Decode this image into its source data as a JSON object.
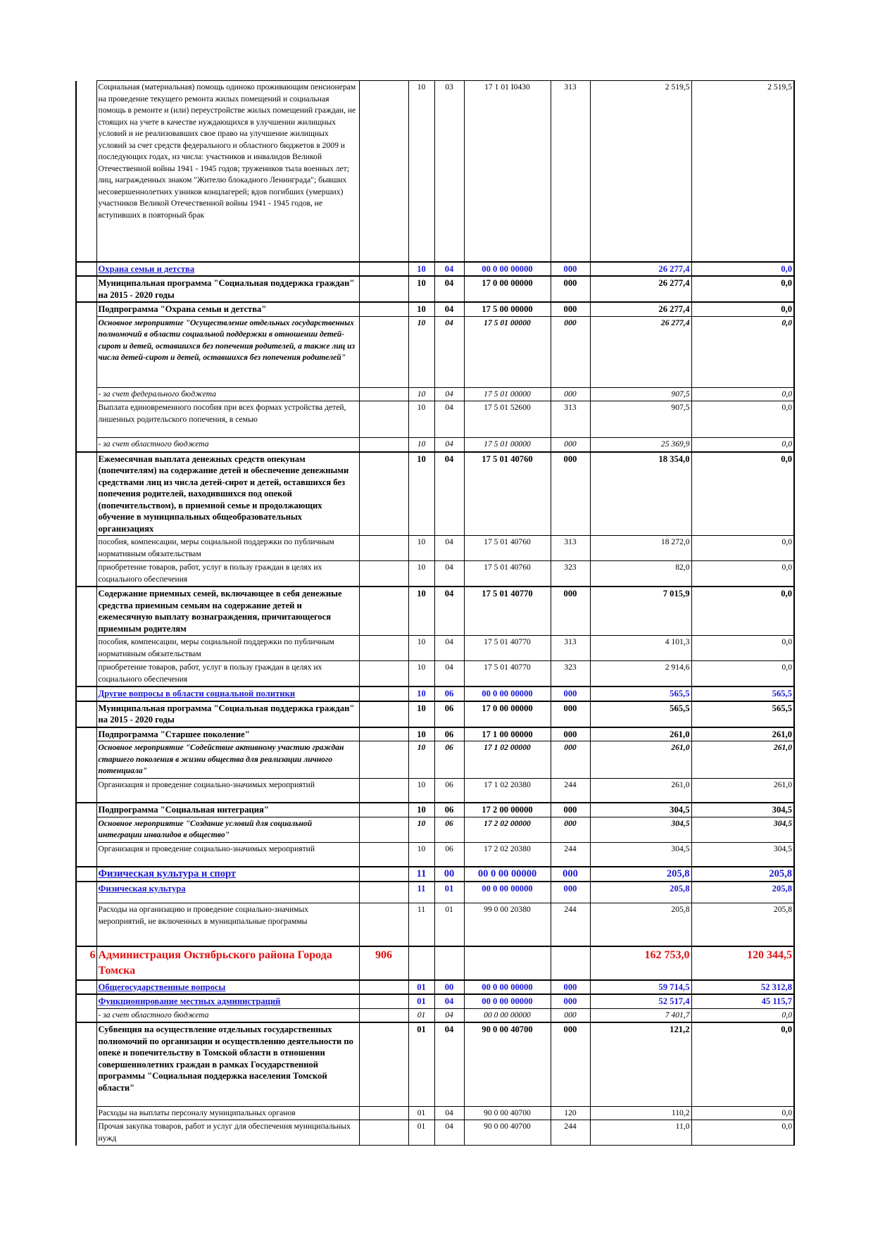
{
  "table": {
    "rows": [
      [
        null,
        "Социальная (материальная) помощь одиноко проживающим пенсионерам на проведение текущего ремонта жилых помещений и социальная помощь в ремонте и (или) переустройстве жилых помещений граждан, не стоящих на учете в качестве нуждающихся в улучшении жилищных условий и не реализовавших свое право на улучшение жилищных условий за счет средств федерального и областного бюджетов в 2009 и последующих годах, из числа: участников и инвалидов Великой Отечественной войны 1941 - 1945 годов; тружеников тыла военных лет; лиц, награжденных знаком \"Жителю блокадного Ленинграда\"; бывших несовершеннолетних узников концлагерей; вдов погибших (умерших) участников Великой Отечественной войны 1941 - 1945 годов, не вступивших в повторный брак",
        null,
        "10",
        "03",
        "17 1 01 I0430",
        "313",
        "2 519,5",
        "2 519,5"
      ],
      [
        null,
        "Охрана семьи и детства",
        null,
        "10",
        "04",
        "00 0 00 00000",
        "000",
        "26 277,4",
        "0,0"
      ],
      [
        null,
        "Муниципальная программа \"Социальная поддержка граждан\" на 2015 - 2020 годы",
        null,
        "10",
        "04",
        "17 0 00 00000",
        "000",
        "26 277,4",
        "0,0"
      ],
      [
        null,
        "Подпрограмма \"Охрана семьи и детства\"",
        null,
        "10",
        "04",
        "17 5 00 00000",
        "000",
        "26 277,4",
        "0,0"
      ],
      [
        null,
        "Основное мероприятие \"Осуществление отдельных государственных полномочий в области социальной поддержки в отношении детей-сирот и детей, оставшихся без попечения родителей, а также лиц из числа детей-сирот и детей, оставшихся без попечения родителей\"",
        null,
        "10",
        "04",
        "17 5 01 00000",
        "000",
        "26 277,4",
        "0,0"
      ],
      [
        null,
        "- за счет федерального бюджета",
        null,
        "10",
        "04",
        "17 5 01 00000",
        "000",
        "907,5",
        "0,0"
      ],
      [
        null,
        "Выплата единовременного пособия при всех формах устройства детей, лишенных родительского попечения, в семью",
        null,
        "10",
        "04",
        "17 5 01 52600",
        "313",
        "907,5",
        "0,0"
      ],
      [
        null,
        "- за счет областного бюджета",
        null,
        "10",
        "04",
        "17 5 01 00000",
        "000",
        "25 369,9",
        "0,0"
      ],
      [
        null,
        "Ежемесячная выплата денежных средств опекунам (попечителям) на содержание детей и обеспечение денежными средствами лиц из числа детей-сирот и детей, оставшихся без попечения родителей, находившихся под опекой (попечительством), в приемной семье и продолжающих обучение в муниципальных общеобразовательных организациях",
        null,
        "10",
        "04",
        "17 5 01 40760",
        "000",
        "18 354,0",
        "0,0"
      ],
      [
        null,
        "пособия, компенсации, меры социальной поддержки по публичным нормативным обязательствам",
        null,
        "10",
        "04",
        "17 5 01 40760",
        "313",
        "18 272,0",
        "0,0"
      ],
      [
        null,
        "приобретение товаров, работ, услуг в пользу граждан в целях их социального обеспечения",
        null,
        "10",
        "04",
        "17 5 01 40760",
        "323",
        "82,0",
        "0,0"
      ],
      [
        null,
        "Содержание приемных семей, включающее в себя денежные средства приемным семьям на содержание детей и ежемесячную выплату вознаграждения, причитающегося приемным родителям",
        null,
        "10",
        "04",
        "17 5 01 40770",
        "000",
        "7 015,9",
        "0,0"
      ],
      [
        null,
        "пособия, компенсации, меры социальной поддержки по публичным нормативным обязательствам",
        null,
        "10",
        "04",
        "17 5 01 40770",
        "313",
        "4 101,3",
        "0,0"
      ],
      [
        null,
        "приобретение товаров, работ, услуг в пользу граждан в целях их социального обеспечения",
        null,
        "10",
        "04",
        "17 5 01 40770",
        "323",
        "2 914,6",
        "0,0"
      ],
      [
        null,
        "Другие вопросы в области социальной политики",
        null,
        "10",
        "06",
        "00 0 00 00000",
        "000",
        "565,5",
        "565,5"
      ],
      [
        null,
        "Муниципальная программа \"Социальная поддержка граждан\" на 2015 - 2020 годы",
        null,
        "10",
        "06",
        "17 0 00 00000",
        "000",
        "565,5",
        "565,5"
      ],
      [
        null,
        "Подпрограмма \"Старшее поколение\"",
        null,
        "10",
        "06",
        "17 1 00 00000",
        "000",
        "261,0",
        "261,0"
      ],
      [
        null,
        "Основное мероприятие \"Содействие активному участию граждан старшего поколения в жизни общества для реализации личного потенциала\"",
        null,
        "10",
        "06",
        "17 1 02 00000",
        "000",
        "261,0",
        "261,0"
      ],
      [
        null,
        "Организация и проведение социально-значимых мероприятий",
        null,
        "10",
        "06",
        "17 1 02 20380",
        "244",
        "261,0",
        "261,0"
      ],
      [
        null,
        "Подпрограмма \"Социальная интеграция\"",
        null,
        "10",
        "06",
        "17 2 00 00000",
        "000",
        "304,5",
        "304,5"
      ],
      [
        null,
        "Основное мероприятие \"Создание условий для социальной интеграции инвалидов в общество\"",
        null,
        "10",
        "06",
        "17 2 02 00000",
        "000",
        "304,5",
        "304,5"
      ],
      [
        null,
        "Организация и проведение социально-значимых мероприятий",
        null,
        "10",
        "06",
        "17 2 02 20380",
        "244",
        "304,5",
        "304,5"
      ],
      [
        null,
        "Физическая культура и спорт",
        null,
        "11",
        "00",
        "00 0 00 00000",
        "000",
        "205,8",
        "205,8"
      ],
      [
        null,
        "Физическая культура",
        null,
        "11",
        "01",
        "00 0 00 00000",
        "000",
        "205,8",
        "205,8"
      ],
      [
        null,
        "Расходы на организацию и проведение социально-значимых мероприятий, не включенных в муниципальные программы",
        null,
        "11",
        "01",
        "99 0 00 20380",
        "244",
        "205,8",
        "205,8"
      ],
      [
        "6",
        "Администрация Октябрьского района Города Томска",
        "906",
        null,
        null,
        null,
        null,
        "162 753,0",
        "120 344,5"
      ],
      [
        null,
        "Общегосударственные вопросы",
        null,
        "01",
        "00",
        "00 0 00 00000",
        "000",
        "59 714,5",
        "52 312,8"
      ],
      [
        null,
        "Функционирование местных администраций",
        null,
        "01",
        "04",
        "00 0 00 00000",
        "000",
        "52 517,4",
        "45 115,7"
      ],
      [
        null,
        "- за счет областного бюджета",
        null,
        "01",
        "04",
        "00 0 00 00000",
        "000",
        "7 401,7",
        "0,0"
      ],
      [
        null,
        "Субвенция на осуществление отдельных государственных полномочий по организации и осуществлению деятельности по опеке и попечительству в Томской области в отношении совершеннолетних граждан в рамках Государственной программы \"Социальная поддержка населения Томской области\"",
        null,
        "01",
        "04",
        "90 0 00 40700",
        "000",
        "121,2",
        "0,0"
      ],
      [
        null,
        "Расходы на выплаты персоналу муниципальных органов",
        null,
        "01",
        "04",
        "90 0 00 40700",
        "120",
        "110,2",
        "0,0"
      ],
      [
        null,
        "Прочая закупка товаров, работ и услуг для обеспечения муниципальных нужд",
        null,
        "01",
        "04",
        "90 0 00 40700",
        "244",
        "11,0",
        "0,0"
      ]
    ]
  }
}
